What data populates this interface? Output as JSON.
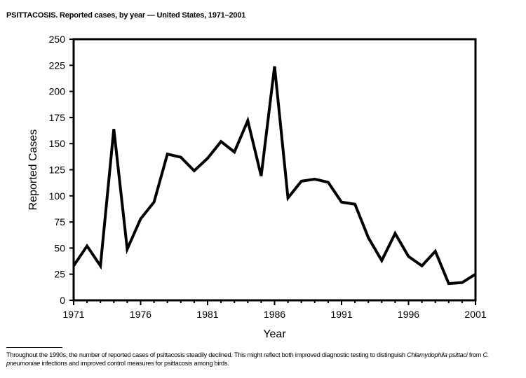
{
  "title": "PSITTACOSIS. Reported cases, by year — United States, 1971–2001",
  "chart_data": {
    "type": "line",
    "title": "PSITTACOSIS. Reported cases, by year — United States, 1971–2001",
    "xlabel": "Year",
    "ylabel": "Reported Cases",
    "xlim": [
      1971,
      2001
    ],
    "ylim": [
      0,
      250
    ],
    "x_ticks": [
      1971,
      1976,
      1981,
      1986,
      1991,
      1996,
      2001
    ],
    "y_ticks": [
      0,
      25,
      50,
      75,
      100,
      125,
      150,
      175,
      200,
      225,
      250
    ],
    "grid": false,
    "legend": "none",
    "color": "#000000",
    "x": [
      1971,
      1972,
      1973,
      1974,
      1975,
      1976,
      1977,
      1978,
      1979,
      1980,
      1981,
      1982,
      1983,
      1984,
      1985,
      1986,
      1987,
      1988,
      1989,
      1990,
      1991,
      1992,
      1993,
      1994,
      1995,
      1996,
      1997,
      1998,
      1999,
      2000,
      2001
    ],
    "values": [
      33,
      52,
      33,
      164,
      49,
      78,
      94,
      140,
      137,
      124,
      136,
      152,
      142,
      172,
      119,
      224,
      98,
      114,
      116,
      113,
      94,
      92,
      60,
      38,
      64,
      42,
      33,
      47,
      16,
      17,
      25
    ]
  },
  "footnote": {
    "part1": "Throughout the 1990s, the number of reported cases of psittacosis steadily declined. This might reflect both improved diagnostic testing to distinguish ",
    "italic1": "Chlamydophila psittaci",
    "part2": " from ",
    "italic2": "C. pneumoniae",
    "part3": " infections and improved control measures for psittacosis among birds."
  }
}
